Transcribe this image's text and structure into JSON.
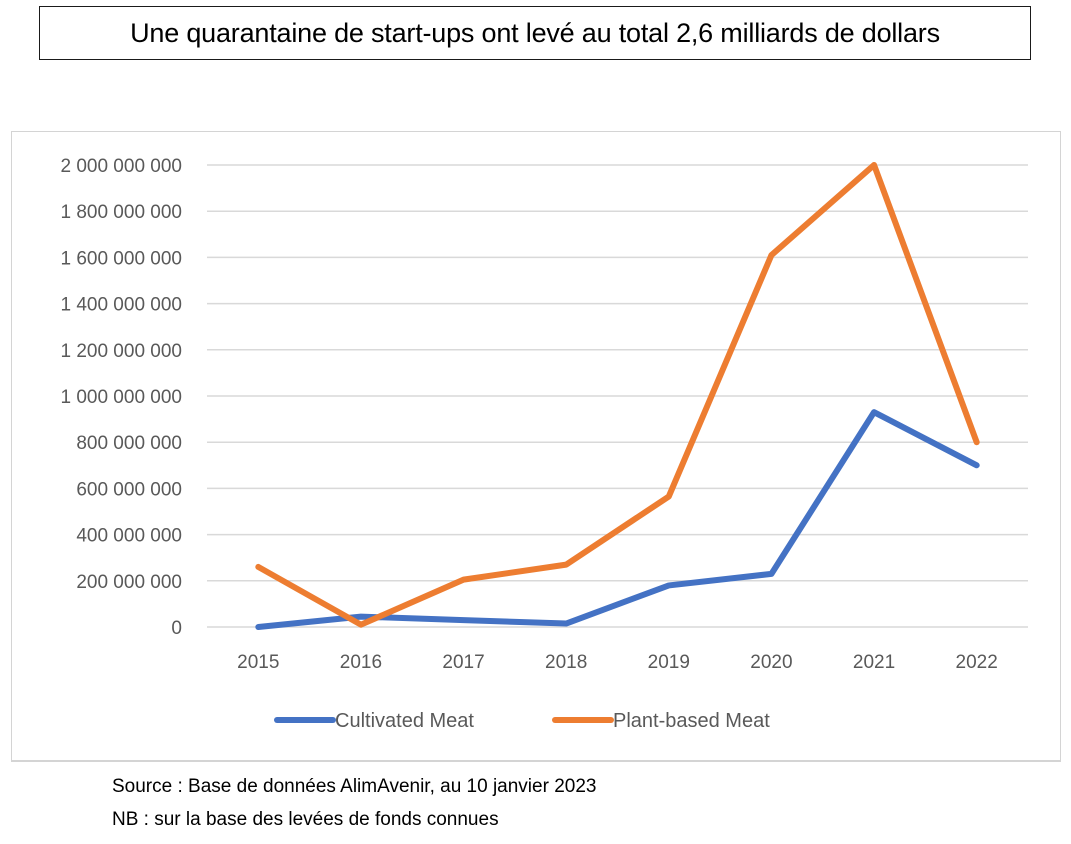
{
  "headline": "Une quarantaine de start-ups ont levé au total 2,6 milliards de dollars",
  "notes": {
    "source": "Source : Base de données AlimAvenir, au 10 janvier 2023",
    "nb": "NB : sur la base des levées de fonds connues"
  },
  "chart_data": {
    "type": "line",
    "title": "",
    "xlabel": "",
    "ylabel": "",
    "x": [
      "2015",
      "2016",
      "2017",
      "2018",
      "2019",
      "2020",
      "2021",
      "2022"
    ],
    "ylim": [
      0,
      2000000000
    ],
    "yticks": [
      0,
      200000000,
      400000000,
      600000000,
      800000000,
      1000000000,
      1200000000,
      1400000000,
      1600000000,
      1800000000,
      2000000000
    ],
    "ytick_labels": [
      "0",
      "200 000 000",
      "400 000 000",
      "600 000 000",
      "800 000 000",
      "1 000 000 000",
      "1 200 000 000",
      "1 400 000 000",
      "1 600 000 000",
      "1 800 000 000",
      "2 000 000 000"
    ],
    "grid": true,
    "legend_position": "bottom",
    "series": [
      {
        "name": "Cultivated Meat",
        "color": "#4472C4",
        "values": [
          0,
          45000000,
          30000000,
          15000000,
          180000000,
          230000000,
          930000000,
          700000000
        ]
      },
      {
        "name": "Plant-based Meat",
        "color": "#ED7D31",
        "values": [
          260000000,
          10000000,
          205000000,
          270000000,
          565000000,
          1610000000,
          2000000000,
          800000000
        ]
      }
    ]
  }
}
